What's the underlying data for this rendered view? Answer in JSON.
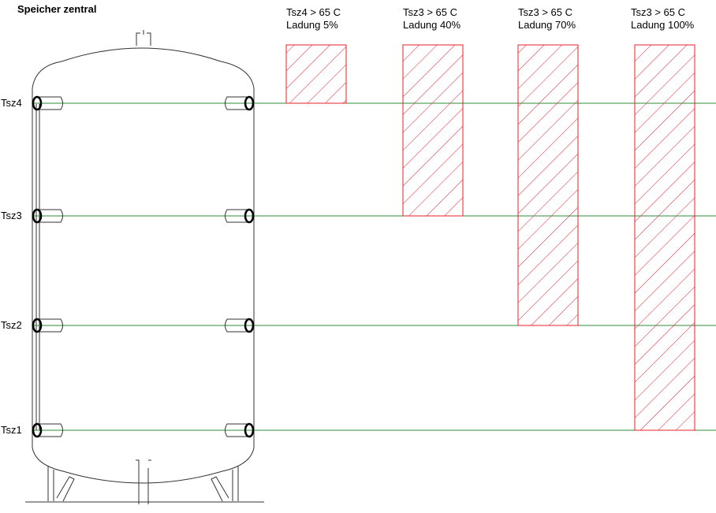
{
  "title": "Speicher zentral",
  "colors": {
    "level_line": "#2e8b3e",
    "hatch": "#e8202a",
    "outline": "#333333"
  },
  "sensors": [
    {
      "id": "Tsz4",
      "label": "Tsz4"
    },
    {
      "id": "Tsz3",
      "label": "Tsz3"
    },
    {
      "id": "Tsz2",
      "label": "Tsz2"
    },
    {
      "id": "Tsz1",
      "label": "Tsz1"
    }
  ],
  "states": [
    {
      "line1": "Tsz4 > 65 C",
      "line2": "Ladung 5%",
      "down_to": "Tsz4"
    },
    {
      "line1": "Tsz3 > 65 C",
      "line2": "Ladung 40%",
      "down_to": "Tsz3"
    },
    {
      "line1": "Tsz3 > 65 C",
      "line2": "Ladung 70%",
      "down_to": "Tsz2"
    },
    {
      "line1": "Tsz3 > 65 C",
      "line2": "Ladung 100%",
      "down_to": "Tsz1"
    }
  ]
}
